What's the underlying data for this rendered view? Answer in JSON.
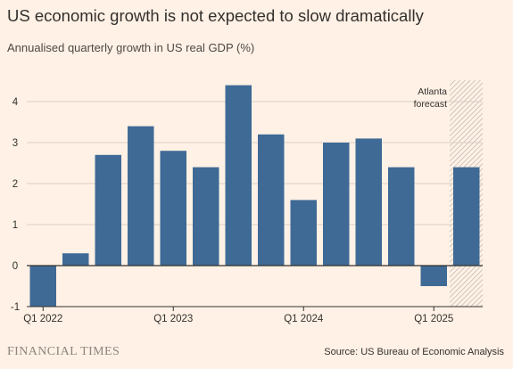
{
  "title": "US economic growth is not expected to slow dramatically",
  "subtitle": "Annualised quarterly growth in US real GDP (%)",
  "footer": {
    "brand": "FINANCIAL TIMES",
    "source": "Source: US Bureau of Economic Analysis"
  },
  "colors": {
    "background": "#FFF1E5",
    "bar": "#3F6A96",
    "grid": "#D9CFC6",
    "zero_line": "#33302E",
    "hatch": "#A8A29C"
  },
  "chart_data": {
    "type": "bar",
    "categories": [
      "Q1 2022",
      "Q2 2022",
      "Q3 2022",
      "Q4 2022",
      "Q1 2023",
      "Q2 2023",
      "Q3 2023",
      "Q4 2023",
      "Q1 2024",
      "Q2 2024",
      "Q3 2024",
      "Q4 2024",
      "Q1 2025",
      "Q2 2025"
    ],
    "values": [
      -1.0,
      0.3,
      2.7,
      3.4,
      2.8,
      2.4,
      4.4,
      3.2,
      1.6,
      3.0,
      3.1,
      2.4,
      -0.5,
      2.4
    ],
    "x_tick_labels": [
      {
        "category": "Q1 2022",
        "label": "Q1 2022"
      },
      {
        "category": "Q1 2023",
        "label": "Q1 2023"
      },
      {
        "category": "Q1 2024",
        "label": "Q1 2024"
      },
      {
        "category": "Q1 2025",
        "label": "Q1 2025"
      }
    ],
    "y_ticks": [
      -1,
      0,
      1,
      2,
      3,
      4
    ],
    "ylim": [
      -1,
      4.6
    ],
    "grid": true,
    "forecast": {
      "category": "Q2 2025",
      "label_lines": [
        "Atlanta",
        "forecast"
      ]
    }
  }
}
